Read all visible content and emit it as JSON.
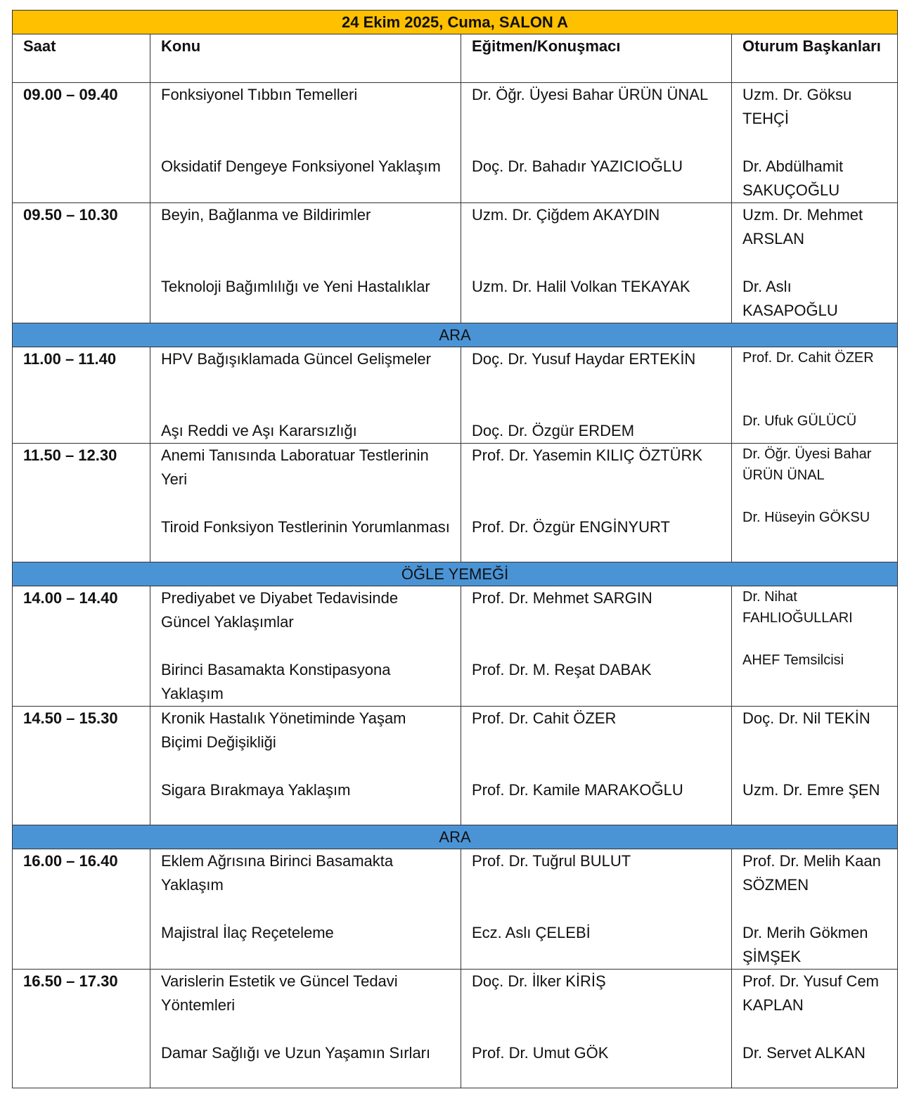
{
  "title": "24 Ekim 2025, Cuma, SALON A",
  "headers": [
    "Saat",
    "Konu",
    "Eğitmen/Konuşmacı",
    "Oturum Başkanları"
  ],
  "rows": [
    {
      "type": "session",
      "time": "09.00 – 09.40",
      "talks": [
        {
          "topic": "Fonksiyonel Tıbbın Temelleri",
          "speaker": "Dr. Öğr. Üyesi Bahar ÜRÜN ÜNAL"
        },
        {
          "topic": "Oksidatif Dengeye Fonksiyonel Yaklaşım",
          "speaker": "Doç. Dr. Bahadır YAZICIOĞLU"
        }
      ],
      "chairs": [
        "Uzm. Dr. Göksu TEHÇİ",
        "Dr. Abdülhamit SAKUÇOĞLU"
      ]
    },
    {
      "type": "session",
      "time": "09.50 – 10.30",
      "talks": [
        {
          "topic": "Beyin, Bağlanma ve Bildirimler",
          "speaker": "Uzm. Dr. Çiğdem AKAYDIN"
        },
        {
          "topic": "Teknoloji Bağımlılığı ve Yeni Hastalıklar",
          "speaker": "Uzm. Dr. Halil Volkan TEKAYAK"
        }
      ],
      "chairs": [
        "Uzm. Dr. Mehmet ARSLAN",
        "Dr. Aslı KASAPOĞLU"
      ]
    },
    {
      "type": "break",
      "label": "ARA"
    },
    {
      "type": "session",
      "short": true,
      "small": true,
      "time": "11.00 – 11.40",
      "talks": [
        {
          "topic": "HPV Bağışıklamada Güncel Gelişmeler",
          "speaker": "Doç. Dr. Yusuf Haydar ERTEKİN"
        },
        {
          "topic": "Aşı Reddi ve Aşı Kararsızlığı",
          "speaker": "Doç. Dr. Özgür ERDEM"
        }
      ],
      "chairs": [
        "Prof. Dr. Cahit ÖZER",
        "Dr. Ufuk GÜLÜCÜ"
      ]
    },
    {
      "type": "session",
      "small": true,
      "time": "11.50 – 12.30",
      "talks": [
        {
          "topic": "Anemi Tanısında Laboratuar Testlerinin Yeri",
          "speaker": "Prof. Dr. Yasemin KILIÇ ÖZTÜRK"
        },
        {
          "topic": "Tiroid Fonksiyon Testlerinin Yorumlanması",
          "speaker": "Prof. Dr. Özgür ENGİNYURT"
        }
      ],
      "chairs": [
        "Dr. Öğr. Üyesi Bahar ÜRÜN ÜNAL",
        "Dr. Hüseyin GÖKSU"
      ]
    },
    {
      "type": "break",
      "label": "ÖĞLE YEMEĞİ"
    },
    {
      "type": "session",
      "small": true,
      "time": "14.00 – 14.40",
      "talks": [
        {
          "topic": "Prediyabet ve Diyabet Tedavisinde Güncel Yaklaşımlar",
          "speaker": "Prof. Dr. Mehmet SARGIN"
        },
        {
          "topic": "Birinci Basamakta Konstipasyona Yaklaşım",
          "speaker": "Prof. Dr. M. Reşat DABAK"
        }
      ],
      "chairs": [
        "Dr. Nihat FAHLIOĞULLARI",
        "AHEF Temsilcisi"
      ]
    },
    {
      "type": "session",
      "time": "14.50 – 15.30",
      "talks": [
        {
          "topic": "Kronik Hastalık Yönetiminde Yaşam Biçimi Değişikliği",
          "speaker": "Prof. Dr. Cahit ÖZER"
        },
        {
          "topic": "Sigara Bırakmaya Yaklaşım",
          "speaker": "Prof. Dr. Kamile MARAKOĞLU"
        }
      ],
      "chairs": [
        "Doç. Dr. Nil TEKİN",
        "Uzm. Dr. Emre ŞEN"
      ]
    },
    {
      "type": "break",
      "label": "ARA"
    },
    {
      "type": "session",
      "time": "16.00 – 16.40",
      "talks": [
        {
          "topic": "Eklem Ağrısına Birinci Basamakta Yaklaşım",
          "speaker": "Prof. Dr. Tuğrul BULUT"
        },
        {
          "topic": "Majistral İlaç Reçeteleme",
          "speaker": "Ecz. Aslı ÇELEBİ"
        }
      ],
      "chairs": [
        "Prof. Dr. Melih Kaan SÖZMEN",
        "Dr. Merih Gökmen ŞİMŞEK"
      ]
    },
    {
      "type": "session",
      "time": "16.50 – 17.30",
      "talks": [
        {
          "topic": "Varislerin Estetik ve Güncel Tedavi Yöntemleri",
          "speaker": "Doç. Dr. İlker KİRİŞ"
        },
        {
          "topic": "Damar Sağlığı ve Uzun Yaşamın Sırları",
          "speaker": "Prof. Dr. Umut GÖK"
        }
      ],
      "chairs": [
        "Prof. Dr. Yusuf Cem KAPLAN",
        "Dr. Servet ALKAN"
      ]
    }
  ],
  "colors": {
    "title_bg": "#ffc000",
    "break_bg": "#4a94d6"
  }
}
